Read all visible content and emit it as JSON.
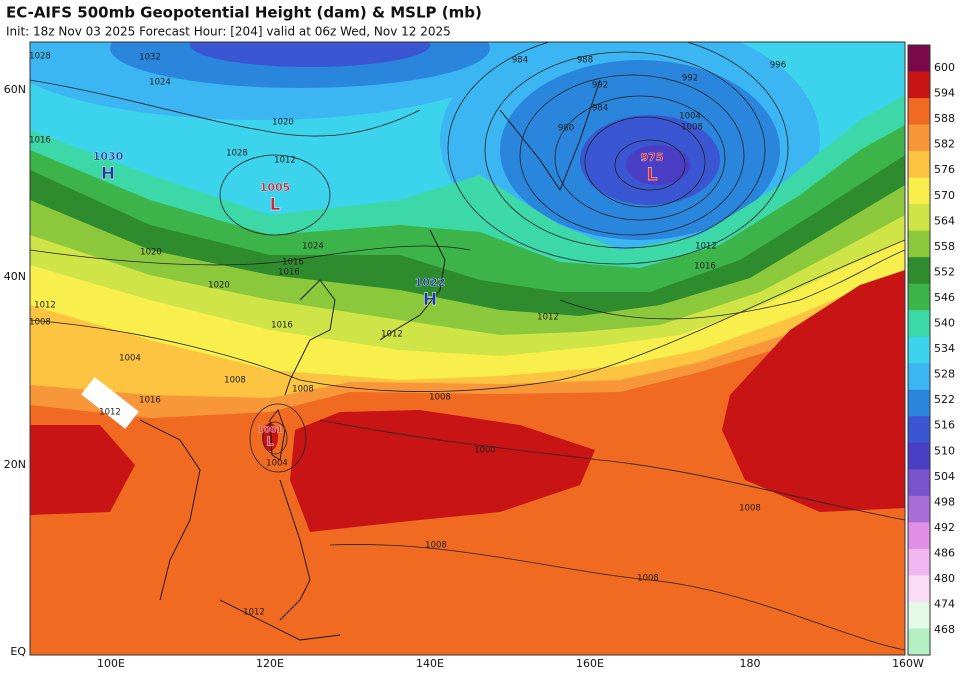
{
  "header": {
    "title": "EC-AIFS 500mb Geopotential Height (dam) & MSLP (mb)",
    "subtitle": "Init: 18z Nov 03 2025   Forecast Hour: [204]   valid at 06z Wed, Nov 12 2025"
  },
  "lat_labels": [
    "60N",
    "40N",
    "20N",
    "EQ"
  ],
  "lon_labels": [
    "100E",
    "120E",
    "140E",
    "160E",
    "180",
    "160W"
  ],
  "colorbar": {
    "levels": [
      600,
      594,
      588,
      582,
      576,
      570,
      564,
      558,
      552,
      546,
      540,
      534,
      528,
      522,
      516,
      510,
      504,
      498,
      492,
      486,
      480,
      474,
      468
    ],
    "colors": [
      "#7a0a4a",
      "#c81414",
      "#f06a22",
      "#f8963a",
      "#fcc440",
      "#f8ee4c",
      "#cfe446",
      "#8cc83c",
      "#2e8c2e",
      "#3cb44a",
      "#3cd8a8",
      "#3cd4ec",
      "#3cb6f2",
      "#2a86dc",
      "#3a56d2",
      "#4a3ec4",
      "#7a52cc",
      "#a86ed8",
      "#e08ee6",
      "#f2b6f0",
      "#fbdcf6",
      "#e4fae8",
      "#b4f0c4"
    ]
  },
  "pressure_centers": [
    {
      "symbol": "H",
      "value": "1030"
    },
    {
      "symbol": "L",
      "value": "1005"
    },
    {
      "symbol": "H",
      "value": "1022"
    },
    {
      "symbol": "L",
      "value": "975"
    },
    {
      "symbol": "L",
      "value": "1001"
    }
  ],
  "isobar_labels": [
    "1028",
    "1032",
    "1024",
    "1016",
    "1020",
    "1028",
    "1012",
    "1020",
    "1024",
    "1020",
    "1016",
    "1016",
    "1012",
    "1008",
    "1016",
    "1012",
    "1004",
    "1008",
    "1012",
    "1016",
    "1008",
    "1008",
    "1000",
    "1004",
    "984",
    "988",
    "992",
    "996",
    "992",
    "984",
    "980",
    "1004",
    "1008",
    "1012",
    "1016",
    "1012",
    "1008",
    "1008",
    "1008",
    "1012"
  ]
}
